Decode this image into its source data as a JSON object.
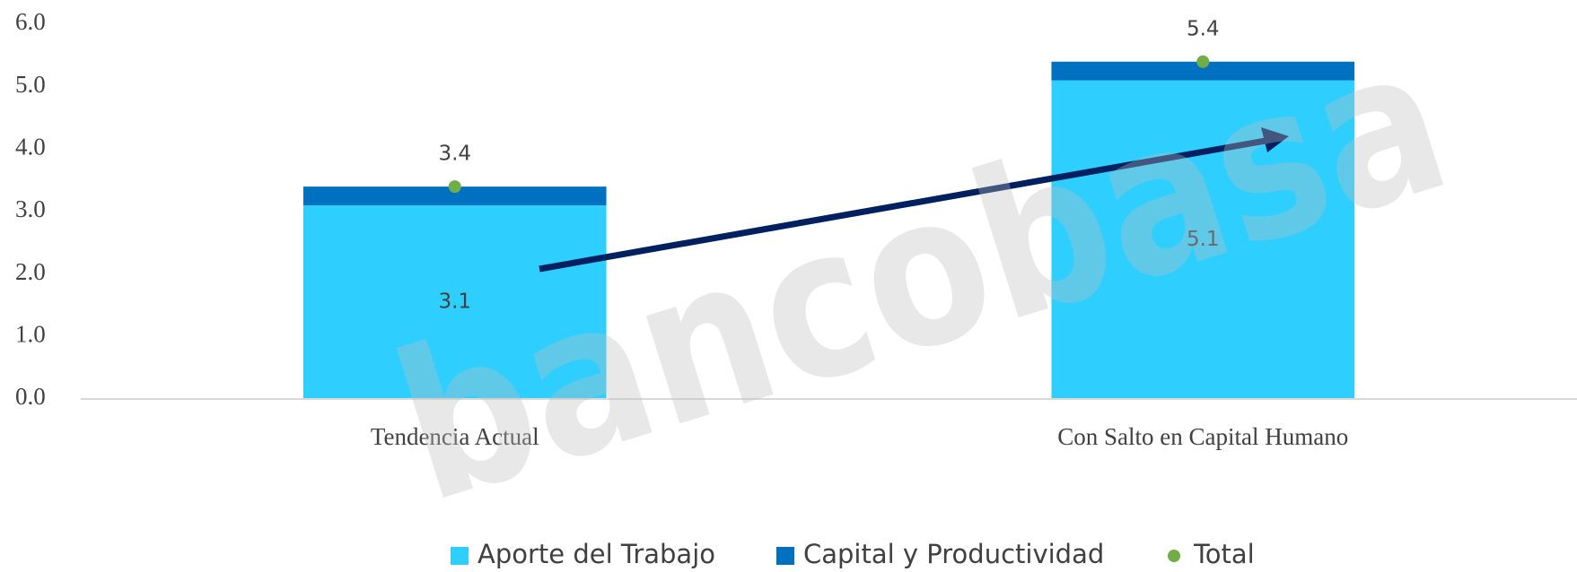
{
  "chart_data": {
    "type": "bar",
    "stacked": true,
    "categories": [
      "Tendencia Actual",
      "Con Salto en Capital Humano"
    ],
    "series": [
      {
        "name": "Aporte del Trabajo",
        "color": "#2ecfff",
        "values": [
          3.1,
          5.1
        ],
        "show_labels": true
      },
      {
        "name": "Capital y Productividad",
        "color": "#0070c0",
        "values": [
          0.3,
          0.3
        ],
        "show_labels": false
      },
      {
        "name": "Total",
        "color": "#70ad47",
        "type": "dot",
        "values": [
          3.4,
          5.4
        ],
        "show_labels": true
      }
    ],
    "ylim": [
      0,
      6
    ],
    "yticks": [
      {
        "value": 0,
        "label": "0.0"
      },
      {
        "value": 1,
        "label": "1.0"
      },
      {
        "value": 2,
        "label": "2.0"
      },
      {
        "value": 3,
        "label": "3.0"
      },
      {
        "value": 4,
        "label": "4.0"
      },
      {
        "value": 5,
        "label": "5.0"
      },
      {
        "value": 6,
        "label": "6.0"
      }
    ],
    "grid": false,
    "legend": "bottom",
    "watermark": "bancobasa"
  }
}
